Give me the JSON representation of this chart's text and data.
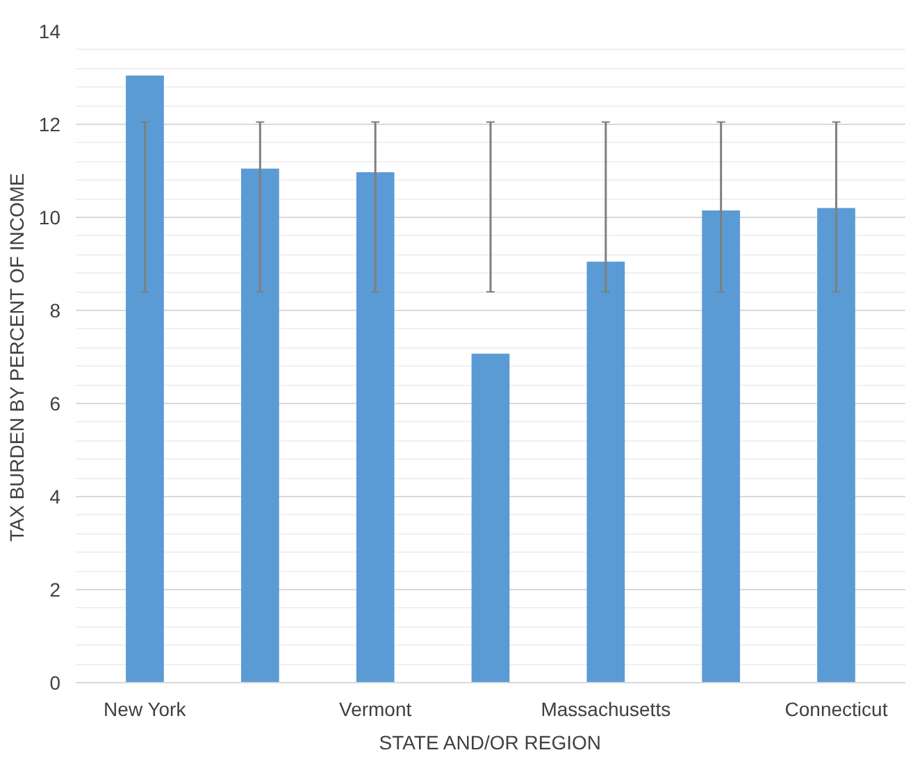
{
  "chart_data": {
    "type": "bar",
    "xlabel": "STATE AND/OR REGION",
    "ylabel": "TAX BURDEN BY PERCENT OF INCOME",
    "categories": [
      "New York",
      null,
      "Vermont",
      null,
      "Massachusetts",
      null,
      "Connecticut"
    ],
    "values": [
      13.05,
      11.05,
      10.97,
      7.07,
      9.05,
      10.15,
      10.2
    ],
    "errors": [
      [
        8.4,
        12.05
      ],
      [
        8.4,
        12.05
      ],
      [
        8.4,
        12.05
      ],
      [
        8.4,
        12.05
      ],
      [
        8.4,
        12.05
      ],
      [
        8.4,
        12.05
      ],
      [
        8.4,
        12.05
      ]
    ],
    "color": "#5b9bd5",
    "ylim": [
      0,
      14
    ],
    "yticks": [
      0,
      2,
      4,
      6,
      8,
      10,
      12,
      14
    ],
    "grid": "y"
  }
}
